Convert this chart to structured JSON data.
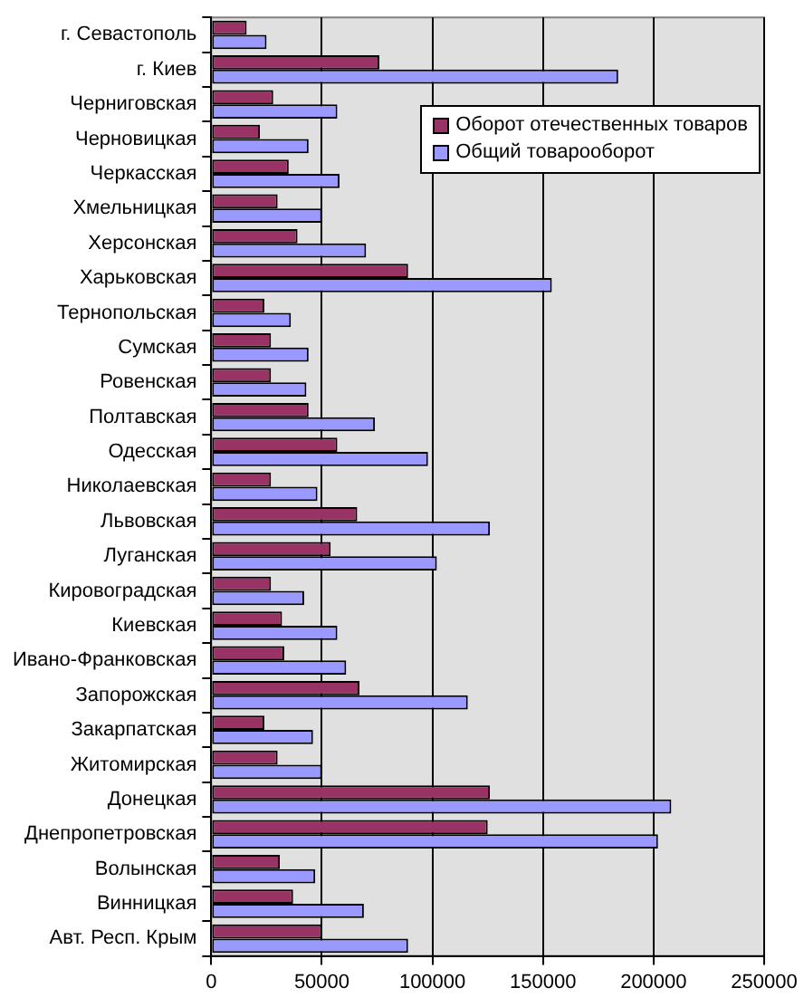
{
  "chart_data": {
    "type": "bar",
    "orientation": "horizontal",
    "categories": [
      "г. Севастополь",
      "г. Киев",
      "Черниговская",
      "Черновицкая",
      "Черкасская",
      "Хмельницкая",
      "Херсонская",
      "Харьковская",
      "Тернопольская",
      "Сумская",
      "Ровенская",
      "Полтавская",
      "Одесская",
      "Николаевская",
      "Львовская",
      "Луганская",
      "Кировоградская",
      "Киевская",
      "Ивано-Франковская",
      "Запорожская",
      "Закарпатская",
      "Житомирская",
      "Донецкая",
      "Днепропетровская",
      "Волынская",
      "Винницкая",
      "Авт. Респ. Крым"
    ],
    "series": [
      {
        "name": "Оборот отечественных товаров",
        "color": "#993366",
        "values": [
          16000,
          76000,
          28000,
          22000,
          35000,
          30000,
          39000,
          89000,
          24000,
          27000,
          27000,
          44000,
          57000,
          27000,
          66000,
          54000,
          27000,
          32000,
          33000,
          67000,
          24000,
          30000,
          126000,
          125000,
          31000,
          37000,
          50000
        ]
      },
      {
        "name": "Общий товарооборот",
        "color": "#9999ff",
        "values": [
          25000,
          184000,
          57000,
          44000,
          58000,
          50000,
          70000,
          154000,
          36000,
          44000,
          43000,
          74000,
          98000,
          48000,
          126000,
          102000,
          42000,
          57000,
          61000,
          116000,
          46000,
          50000,
          208000,
          202000,
          47000,
          69000,
          89000
        ]
      }
    ],
    "xlim": [
      0,
      250000
    ],
    "xticks": [
      0,
      50000,
      100000,
      150000,
      200000,
      250000
    ],
    "grid": "x",
    "legend": "top right"
  }
}
